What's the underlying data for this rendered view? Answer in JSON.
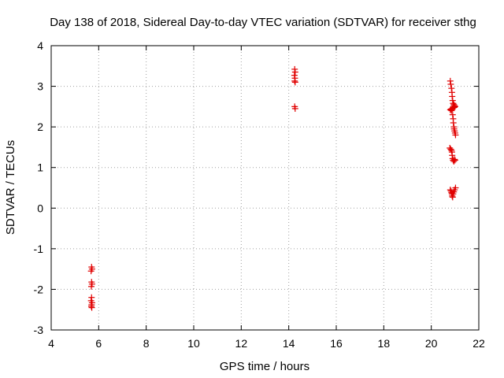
{
  "chart_data": {
    "type": "scatter",
    "title": "Day 138 of 2018, Sidereal Day-to-day VTEC variation (SDTVAR) for receiver sthg",
    "xlabel": "GPS time / hours",
    "ylabel": "SDTVAR / TECUs",
    "xlim": [
      4,
      22
    ],
    "ylim": [
      -3,
      4
    ],
    "xticks": [
      "4",
      "6",
      "8",
      "10",
      "12",
      "14",
      "16",
      "18",
      "20",
      "22"
    ],
    "yticks": [
      "-3",
      "-2",
      "-1",
      "0",
      "1",
      "2",
      "3",
      "4"
    ],
    "grid": true,
    "marker": "+",
    "marker_color": "#e00000",
    "series": [
      {
        "name": "SDTVAR",
        "points": [
          [
            5.7,
            -1.45
          ],
          [
            5.72,
            -1.5
          ],
          [
            5.68,
            -1.55
          ],
          [
            5.7,
            -1.82
          ],
          [
            5.72,
            -1.87
          ],
          [
            5.69,
            -1.93
          ],
          [
            5.7,
            -2.2
          ],
          [
            5.68,
            -2.28
          ],
          [
            5.72,
            -2.33
          ],
          [
            5.7,
            -2.38
          ],
          [
            5.69,
            -2.42
          ],
          [
            5.71,
            -2.45
          ],
          [
            14.25,
            3.42
          ],
          [
            14.27,
            3.35
          ],
          [
            14.24,
            3.27
          ],
          [
            14.26,
            3.2
          ],
          [
            14.25,
            3.13
          ],
          [
            14.27,
            3.1
          ],
          [
            14.25,
            2.5
          ],
          [
            14.27,
            2.45
          ],
          [
            20.8,
            3.13
          ],
          [
            20.82,
            3.05
          ],
          [
            20.85,
            2.95
          ],
          [
            20.87,
            2.85
          ],
          [
            20.88,
            2.75
          ],
          [
            20.9,
            2.65
          ],
          [
            20.92,
            2.58
          ],
          [
            20.95,
            2.55
          ],
          [
            20.98,
            2.52
          ],
          [
            21.0,
            2.5
          ],
          [
            20.97,
            2.48
          ],
          [
            20.93,
            2.47
          ],
          [
            20.88,
            2.45
          ],
          [
            20.83,
            2.44
          ],
          [
            20.8,
            2.42
          ],
          [
            20.85,
            2.4
          ],
          [
            20.9,
            2.3
          ],
          [
            20.92,
            2.2
          ],
          [
            20.93,
            2.1
          ],
          [
            20.95,
            2.0
          ],
          [
            20.96,
            1.95
          ],
          [
            20.98,
            1.9
          ],
          [
            21.0,
            1.85
          ],
          [
            21.02,
            1.8
          ],
          [
            20.78,
            1.48
          ],
          [
            20.82,
            1.45
          ],
          [
            20.85,
            1.42
          ],
          [
            20.87,
            1.38
          ],
          [
            20.88,
            1.3
          ],
          [
            20.9,
            1.22
          ],
          [
            20.92,
            1.18
          ],
          [
            20.95,
            1.15
          ],
          [
            20.98,
            1.2
          ],
          [
            21.0,
            1.18
          ],
          [
            20.8,
            0.45
          ],
          [
            20.83,
            0.42
          ],
          [
            20.85,
            0.38
          ],
          [
            20.87,
            0.35
          ],
          [
            20.88,
            0.3
          ],
          [
            20.9,
            0.27
          ],
          [
            20.92,
            0.35
          ],
          [
            20.95,
            0.4
          ],
          [
            20.98,
            0.45
          ],
          [
            21.02,
            0.5
          ]
        ]
      }
    ]
  }
}
